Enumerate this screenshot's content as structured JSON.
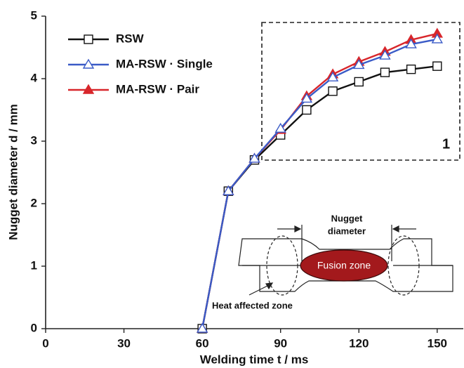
{
  "chart_data": {
    "type": "line",
    "x_label": "Welding time t / ms",
    "y_label": "Nugget diameter d / mm",
    "x": [
      60,
      70,
      80,
      90,
      100,
      110,
      120,
      130,
      140,
      150
    ],
    "series": [
      {
        "name": "RSW",
        "color": "#111111",
        "marker": "square",
        "filled": false,
        "values": [
          0,
          2.2,
          2.7,
          3.1,
          3.5,
          3.8,
          3.95,
          4.1,
          4.15,
          4.2
        ]
      },
      {
        "name": "MA-RSW · Single",
        "color": "#3a5bc7",
        "marker": "triangle",
        "filled": false,
        "values": [
          0,
          2.2,
          2.72,
          3.2,
          3.68,
          4.02,
          4.22,
          4.37,
          4.55,
          4.63
        ]
      },
      {
        "name": "MA-RSW · Pair",
        "color": "#d8262b",
        "marker": "triangle",
        "filled": true,
        "values": [
          0,
          2.2,
          2.72,
          3.18,
          3.72,
          4.07,
          4.27,
          4.43,
          4.62,
          4.72
        ]
      }
    ],
    "xlim": [
      0,
      160
    ],
    "xticks": [
      0,
      30,
      60,
      90,
      120,
      150
    ],
    "ylim": [
      0,
      5
    ],
    "yticks": [
      0,
      1,
      2,
      3,
      4,
      5
    ],
    "legend": "upper left",
    "annotations": [
      "1",
      "Nugget",
      "diameter",
      "Fusion zone",
      "Heat affected zone"
    ]
  }
}
